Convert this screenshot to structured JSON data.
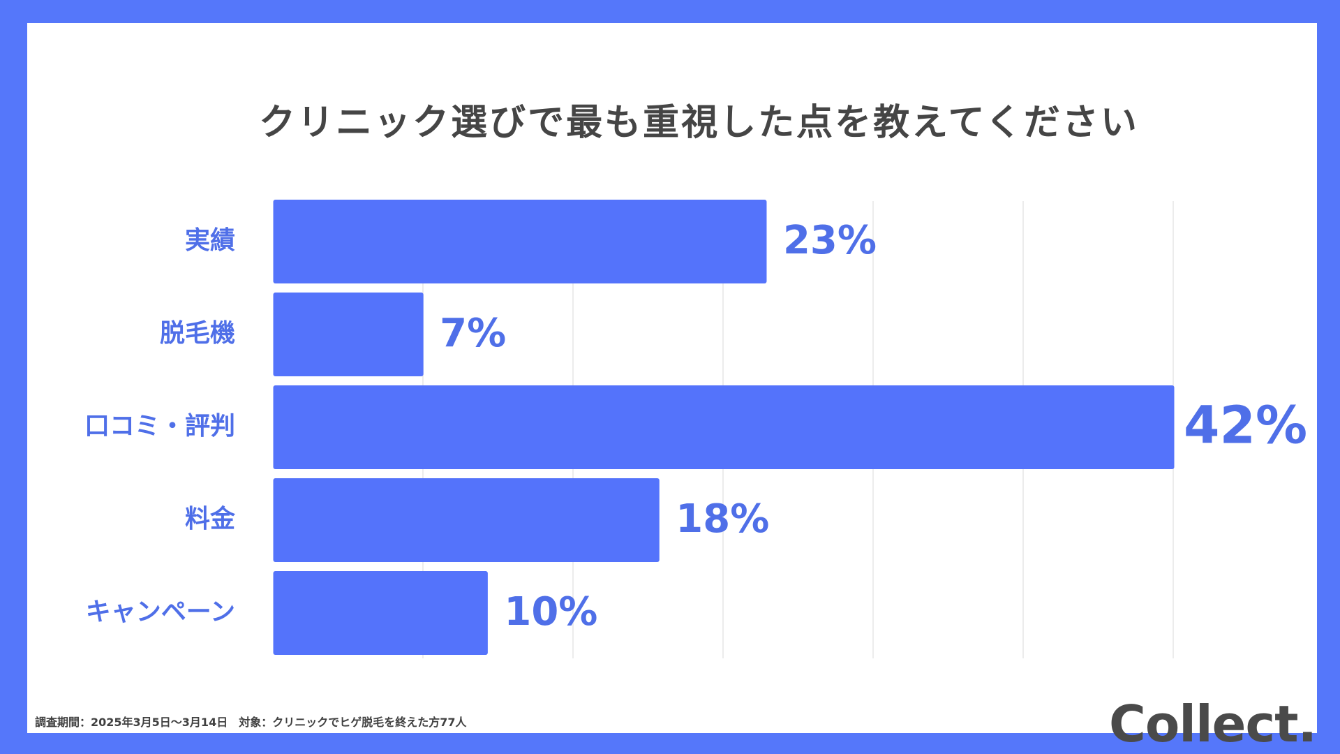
{
  "chart_data": {
    "type": "bar",
    "orientation": "horizontal",
    "title": "クリニック選びで最も重視した点を教えてください",
    "categories": [
      "実績",
      "脱毛機",
      "口コミ・評判",
      "料金",
      "キャンペーン"
    ],
    "values": [
      23,
      7,
      42,
      18,
      10
    ],
    "value_labels": [
      "23%",
      "7%",
      "42%",
      "18%",
      "10%"
    ],
    "xlim": [
      0,
      42
    ],
    "grid": true,
    "bar_color": "#5473fb",
    "label_color": "#4f6fe8"
  },
  "footer": {
    "note": "調査期間：2025年3月5日～3月14日　対象：クリニックでヒゲ脱毛を終えた方77人",
    "logo": "Collect."
  },
  "colors": {
    "frame": "#5577fa",
    "background": "#ffffff",
    "title": "#454545",
    "grid": "#e6e6e6"
  }
}
